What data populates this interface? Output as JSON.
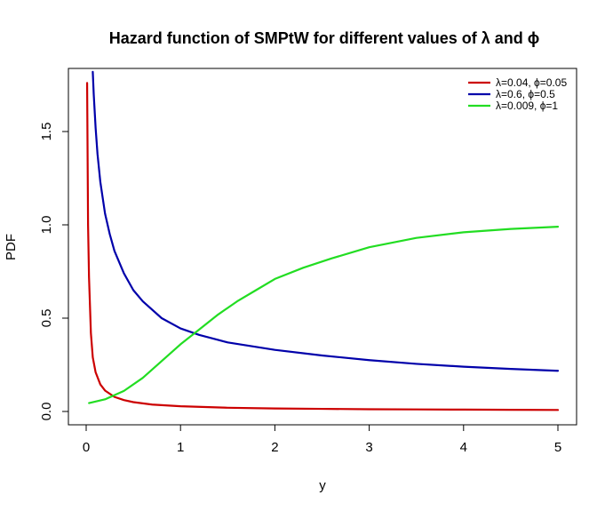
{
  "chart_data": {
    "type": "line",
    "title": "Hazard function of SMPtW for different values of λ and ϕ",
    "xlabel": "y",
    "ylabel": "PDF",
    "xlim": [
      0,
      5
    ],
    "ylim": [
      0,
      1.8
    ],
    "x_ticks": [
      0,
      1,
      2,
      3,
      4,
      5
    ],
    "y_ticks": [
      0.0,
      0.5,
      1.0,
      1.5
    ],
    "x_tick_labels": [
      "0",
      "1",
      "2",
      "3",
      "4",
      "5"
    ],
    "y_tick_labels": [
      "0.0",
      "0.5",
      "1.0",
      "1.5"
    ],
    "legend_position": "top-right",
    "grid": false,
    "series": [
      {
        "name": "λ=0.04, ϕ=0.05",
        "color": "#CC0000",
        "x": [
          0.01,
          0.02,
          0.03,
          0.05,
          0.07,
          0.1,
          0.15,
          0.2,
          0.3,
          0.4,
          0.5,
          0.7,
          1.0,
          1.5,
          2.0,
          2.5,
          3.0,
          3.5,
          4.0,
          4.5,
          5.0
        ],
        "y": [
          1.76,
          1.0,
          0.72,
          0.42,
          0.29,
          0.21,
          0.145,
          0.112,
          0.078,
          0.061,
          0.05,
          0.037,
          0.028,
          0.02,
          0.016,
          0.014,
          0.012,
          0.011,
          0.01,
          0.009,
          0.008
        ]
      },
      {
        "name": "λ=0.6, ϕ=0.5",
        "color": "#0000AA",
        "x": [
          0.07,
          0.08,
          0.1,
          0.12,
          0.15,
          0.2,
          0.25,
          0.3,
          0.4,
          0.5,
          0.6,
          0.8,
          1.0,
          1.2,
          1.5,
          2.0,
          2.5,
          3.0,
          3.5,
          4.0,
          4.5,
          5.0
        ],
        "y": [
          1.82,
          1.7,
          1.52,
          1.38,
          1.23,
          1.06,
          0.95,
          0.86,
          0.74,
          0.65,
          0.59,
          0.5,
          0.445,
          0.41,
          0.37,
          0.33,
          0.3,
          0.275,
          0.255,
          0.24,
          0.228,
          0.218
        ]
      },
      {
        "name": "λ=0.009, ϕ=1",
        "color": "#22DD22",
        "x": [
          0.03,
          0.2,
          0.4,
          0.6,
          0.8,
          1.0,
          1.2,
          1.4,
          1.6,
          1.8,
          2.0,
          2.3,
          2.6,
          3.0,
          3.5,
          4.0,
          4.5,
          5.0
        ],
        "y": [
          0.045,
          0.065,
          0.11,
          0.18,
          0.27,
          0.36,
          0.44,
          0.52,
          0.59,
          0.65,
          0.71,
          0.77,
          0.82,
          0.88,
          0.93,
          0.96,
          0.978,
          0.99
        ]
      }
    ]
  }
}
